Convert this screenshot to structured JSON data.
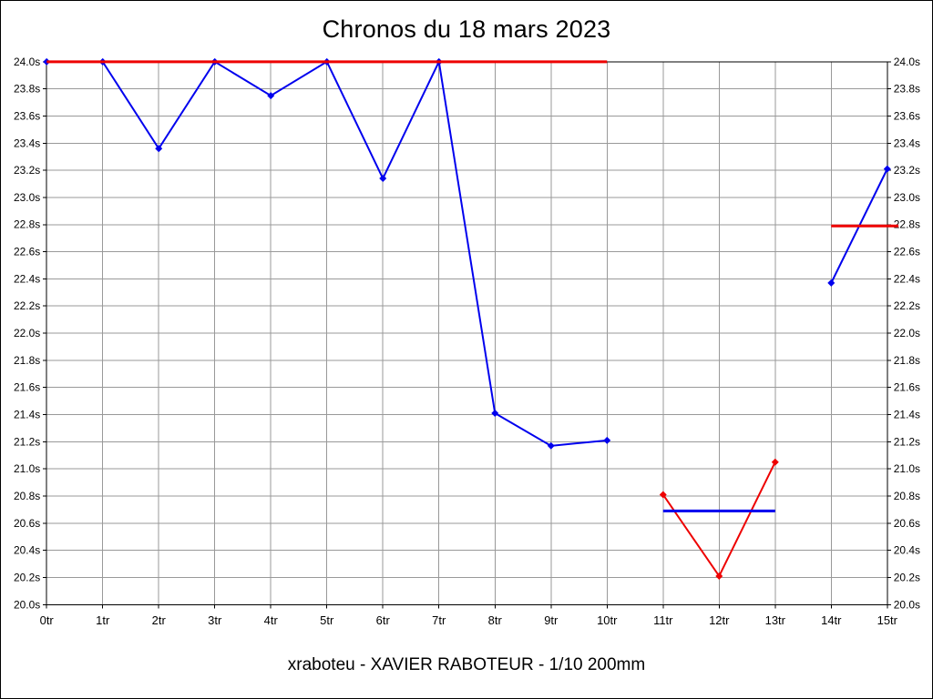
{
  "title": "Chronos du 18 mars 2023",
  "footer": "xraboteu - XAVIER RABOTEUR - 1/10 200mm",
  "colors": {
    "blue": "#0000ee",
    "red": "#ee0000",
    "grid": "#999999",
    "frame": "#000000"
  },
  "chart_data": {
    "type": "line",
    "title": "Chronos du 18 mars 2023",
    "caption": "xraboteu - XAVIER RABOTEUR - 1/10 200mm",
    "x_unit": "tr",
    "y_unit": "s",
    "xlim": [
      0,
      15
    ],
    "ylim": [
      20.0,
      24.0
    ],
    "ytick": 0.2,
    "grid": true,
    "legend": "none",
    "xlabels": [
      "0tr",
      "1tr",
      "2tr",
      "3tr",
      "4tr",
      "5tr",
      "6tr",
      "7tr",
      "8tr",
      "9tr",
      "10tr",
      "11tr",
      "12tr",
      "13tr",
      "14tr",
      "15tr"
    ],
    "ylabels": [
      "24.0s",
      "23.8s",
      "23.6s",
      "23.4s",
      "23.2s",
      "23.0s",
      "22.8s",
      "22.6s",
      "22.4s",
      "22.2s",
      "22.0s",
      "21.8s",
      "21.6s",
      "21.4s",
      "21.2s",
      "21.0s",
      "20.8s",
      "20.6s",
      "20.4s",
      "20.2s",
      "20.0s"
    ],
    "series": [
      {
        "name": "lap-times-blue-a",
        "color": "#0000ee",
        "width": 2,
        "markers": true,
        "points": [
          [
            0,
            24.0
          ],
          [
            1,
            24.0
          ],
          [
            2,
            23.36
          ],
          [
            3,
            24.0
          ],
          [
            4,
            23.75
          ],
          [
            5,
            24.0
          ],
          [
            6,
            23.14
          ],
          [
            7,
            24.0
          ],
          [
            8,
            21.41
          ],
          [
            9,
            21.17
          ],
          [
            10,
            21.21
          ]
        ]
      },
      {
        "name": "lap-times-red",
        "color": "#ee0000",
        "width": 2,
        "markers": true,
        "points": [
          [
            11,
            20.81
          ],
          [
            12,
            20.21
          ],
          [
            13,
            21.05
          ]
        ]
      },
      {
        "name": "lap-times-blue-b",
        "color": "#0000ee",
        "width": 2,
        "markers": true,
        "points": [
          [
            14,
            22.37
          ],
          [
            15,
            23.21
          ]
        ]
      },
      {
        "name": "reference-red-top",
        "color": "#ee0000",
        "width": 3,
        "markers": false,
        "points": [
          [
            0,
            24.0
          ],
          [
            10,
            24.0
          ]
        ]
      },
      {
        "name": "average-blue",
        "color": "#0000ee",
        "width": 3,
        "markers": false,
        "points": [
          [
            11,
            20.69
          ],
          [
            13,
            20.69
          ]
        ]
      },
      {
        "name": "average-red",
        "color": "#ee0000",
        "width": 3,
        "markers": false,
        "points": [
          [
            14,
            22.79
          ],
          [
            15.2,
            22.79
          ]
        ]
      }
    ]
  }
}
